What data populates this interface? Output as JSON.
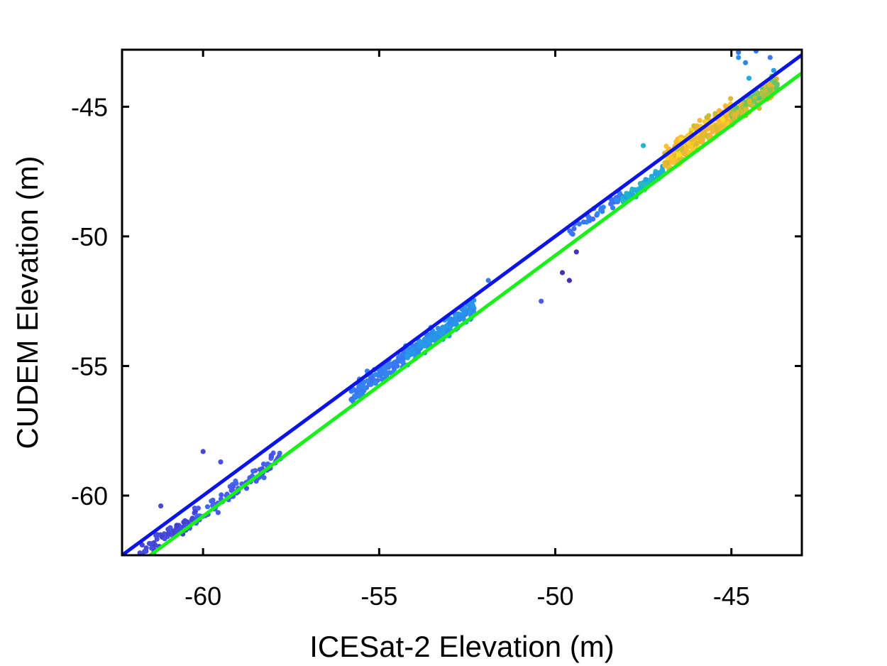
{
  "chart_data": {
    "type": "scatter",
    "title": "",
    "xlabel": "ICESat-2 Elevation (m)",
    "ylabel": "CUDEM Elevation (m)",
    "xlim": [
      -62.3,
      -43.0
    ],
    "ylim": [
      -62.3,
      -42.8
    ],
    "xticks": [
      -60,
      -55,
      -50,
      -45
    ],
    "yticks": [
      -60,
      -55,
      -50,
      -45
    ],
    "x_tick_labels": [
      "-60",
      "-55",
      "-50",
      "-45"
    ],
    "y_tick_labels": [
      "-60",
      "-55",
      "-50",
      "-45"
    ],
    "grid": false,
    "colors": {
      "one_to_one_line": "#0a14e6",
      "fit_line": "#19f019",
      "colormap": [
        "#3e26a8",
        "#4a5cf4",
        "#2a8fef",
        "#1bb3d6",
        "#2ac4a4",
        "#7fc64c",
        "#d9ba30",
        "#fbb335",
        "#f9e81c"
      ]
    },
    "lines": [
      {
        "kind": "one_to_one",
        "x": [
          -62.3,
          -43.0
        ],
        "y": [
          -62.3,
          -43.0
        ]
      },
      {
        "kind": "fit",
        "x": [
          -61.5,
          -43.0
        ],
        "y": [
          -62.3,
          -43.7
        ]
      }
    ],
    "scatter_clusters": [
      {
        "x_range": [
          -61.8,
          -60.2
        ],
        "fit_offset": 0.25,
        "spread": 0.35,
        "count": 70,
        "color_from": 0.05,
        "color_to": 0.12
      },
      {
        "x_range": [
          -60.2,
          -57.8
        ],
        "fit_offset": 0.1,
        "spread": 0.35,
        "count": 80,
        "color_from": 0.1,
        "color_to": 0.16
      },
      {
        "x_range": [
          -55.8,
          -54.2
        ],
        "fit_offset": 0.45,
        "spread": 0.35,
        "count": 110,
        "color_from": 0.18,
        "color_to": 0.24
      },
      {
        "x_range": [
          -54.2,
          -52.3
        ],
        "fit_offset": 0.35,
        "spread": 0.35,
        "count": 170,
        "color_from": 0.22,
        "color_to": 0.3
      },
      {
        "x_range": [
          -49.6,
          -48.1
        ],
        "fit_offset": 0.45,
        "spread": 0.2,
        "count": 40,
        "color_from": 0.15,
        "color_to": 0.25
      },
      {
        "x_range": [
          -48.1,
          -46.9
        ],
        "fit_offset": 0.15,
        "spread": 0.2,
        "count": 80,
        "color_from": 0.3,
        "color_to": 0.45
      },
      {
        "x_range": [
          -46.9,
          -45.0
        ],
        "fit_offset": 0.5,
        "spread": 0.45,
        "count": 280,
        "color_from": 0.72,
        "color_to": 0.98
      },
      {
        "x_range": [
          -45.0,
          -43.7
        ],
        "fit_offset": 0.3,
        "spread": 0.35,
        "count": 170,
        "color_from": 0.55,
        "color_to": 0.85
      }
    ],
    "outliers": [
      {
        "x": -60.0,
        "y": -58.3,
        "c": 0.08
      },
      {
        "x": -59.5,
        "y": -58.7,
        "c": 0.1
      },
      {
        "x": -61.2,
        "y": -60.4,
        "c": 0.08
      },
      {
        "x": -50.4,
        "y": -52.5,
        "c": 0.12
      },
      {
        "x": -49.6,
        "y": -51.7,
        "c": 0.02
      },
      {
        "x": -49.8,
        "y": -51.4,
        "c": 0.03
      },
      {
        "x": -49.4,
        "y": -50.6,
        "c": 0.03
      },
      {
        "x": -47.5,
        "y": -46.5,
        "c": 0.4
      },
      {
        "x": -51.9,
        "y": -51.7,
        "c": 0.2
      },
      {
        "x": -44.8,
        "y": -43.1,
        "c": 0.25
      },
      {
        "x": -44.6,
        "y": -43.3,
        "c": 0.22
      },
      {
        "x": -43.9,
        "y": -43.1,
        "c": 0.2
      },
      {
        "x": -44.8,
        "y": -42.9,
        "c": 0.2
      },
      {
        "x": -44.3,
        "y": -42.85,
        "c": 0.2
      },
      {
        "x": -43.8,
        "y": -43.6,
        "c": 0.3
      },
      {
        "x": -44.5,
        "y": -43.9,
        "c": 0.35
      }
    ]
  }
}
